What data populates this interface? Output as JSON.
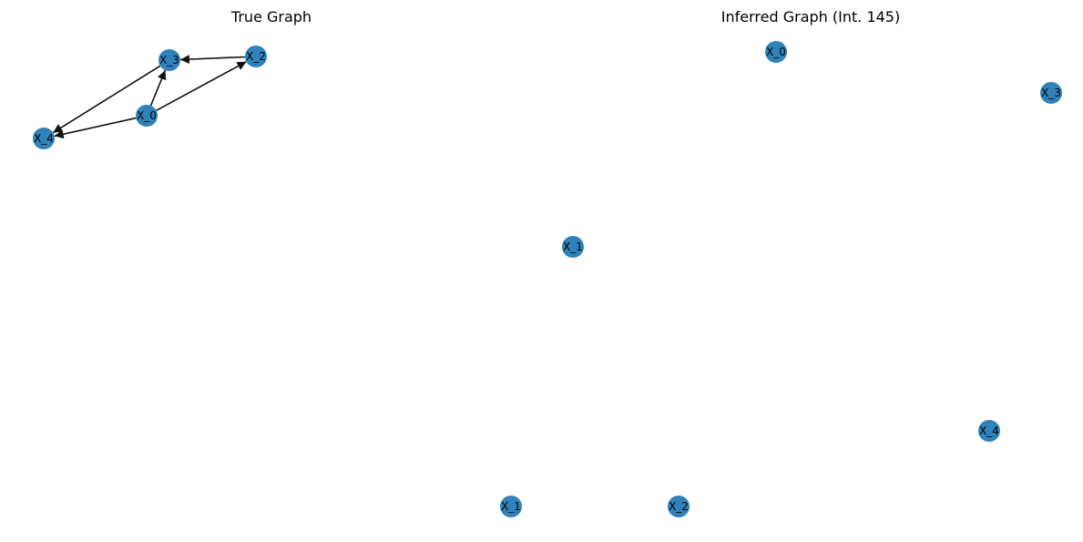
{
  "figure": {
    "panels": [
      {
        "title": "True Graph",
        "nodes": [
          "X_0",
          "X_1",
          "X_2",
          "X_3",
          "X_4"
        ],
        "edges": [
          {
            "from": "X_0",
            "to": "X_3"
          },
          {
            "from": "X_0",
            "to": "X_2"
          },
          {
            "from": "X_0",
            "to": "X_4"
          },
          {
            "from": "X_2",
            "to": "X_3"
          },
          {
            "from": "X_3",
            "to": "X_4"
          }
        ]
      },
      {
        "title": "Inferred Graph (Int. 145)",
        "nodes": [
          "X_0",
          "X_1",
          "X_2",
          "X_3",
          "X_4"
        ],
        "edges": []
      }
    ],
    "colors": {
      "node_fill": "#1f77b4",
      "edge": "#111111",
      "label": "#000000"
    }
  }
}
